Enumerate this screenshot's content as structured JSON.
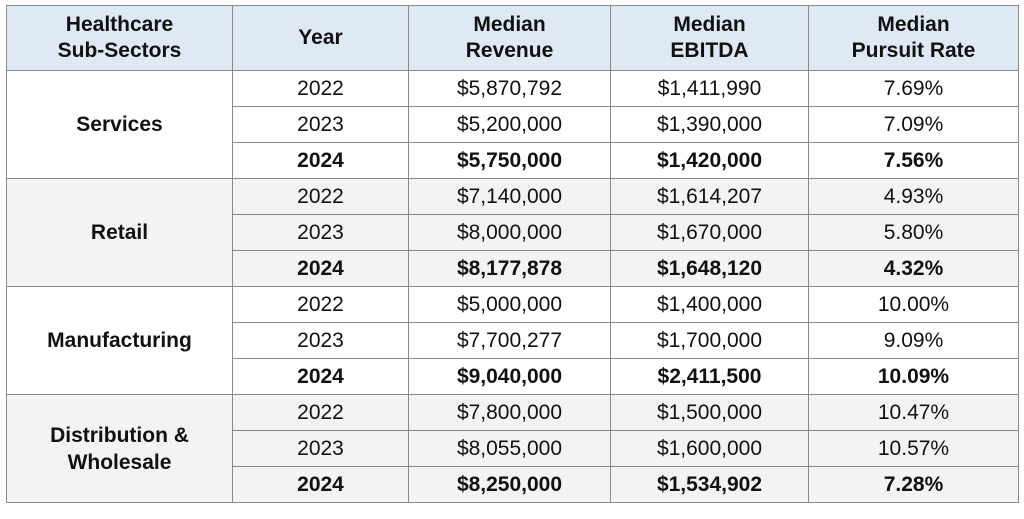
{
  "header": {
    "sector_line1": "Healthcare",
    "sector_line2": "Sub-Sectors",
    "year": "Year",
    "revenue_line1": "Median",
    "revenue_line2": "Revenue",
    "ebitda_line1": "Median",
    "ebitda_line2": "EBITDA",
    "pursuit_line1": "Median",
    "pursuit_line2": "Pursuit Rate"
  },
  "groups": [
    {
      "name_line1": "Services",
      "name_line2": "",
      "rows": [
        {
          "year": "2022",
          "revenue": "$5,870,792",
          "ebitda": "$1,411,990",
          "pursuit": "7.69%"
        },
        {
          "year": "2023",
          "revenue": "$5,200,000",
          "ebitda": "$1,390,000",
          "pursuit": "7.09%"
        },
        {
          "year": "2024",
          "revenue": "$5,750,000",
          "ebitda": "$1,420,000",
          "pursuit": "7.56%"
        }
      ]
    },
    {
      "name_line1": "Retail",
      "name_line2": "",
      "rows": [
        {
          "year": "2022",
          "revenue": "$7,140,000",
          "ebitda": "$1,614,207",
          "pursuit": "4.93%"
        },
        {
          "year": "2023",
          "revenue": "$8,000,000",
          "ebitda": "$1,670,000",
          "pursuit": "5.80%"
        },
        {
          "year": "2024",
          "revenue": "$8,177,878",
          "ebitda": "$1,648,120",
          "pursuit": "4.32%"
        }
      ]
    },
    {
      "name_line1": "Manufacturing",
      "name_line2": "",
      "rows": [
        {
          "year": "2022",
          "revenue": "$5,000,000",
          "ebitda": "$1,400,000",
          "pursuit": "10.00%"
        },
        {
          "year": "2023",
          "revenue": "$7,700,277",
          "ebitda": "$1,700,000",
          "pursuit": "9.09%"
        },
        {
          "year": "2024",
          "revenue": "$9,040,000",
          "ebitda": "$2,411,500",
          "pursuit": "10.09%"
        }
      ]
    },
    {
      "name_line1": "Distribution &",
      "name_line2": "Wholesale",
      "rows": [
        {
          "year": "2022",
          "revenue": "$7,800,000",
          "ebitda": "$1,500,000",
          "pursuit": "10.47%"
        },
        {
          "year": "2023",
          "revenue": "$8,055,000",
          "ebitda": "$1,600,000",
          "pursuit": "10.57%"
        },
        {
          "year": "2024",
          "revenue": "$8,250,000",
          "ebitda": "$1,534,902",
          "pursuit": "7.28%"
        }
      ]
    }
  ],
  "colors": {
    "header_background": "#dfe9f5",
    "alternate_group_background": "#f3f3f3",
    "border": "#8a8a8a"
  }
}
